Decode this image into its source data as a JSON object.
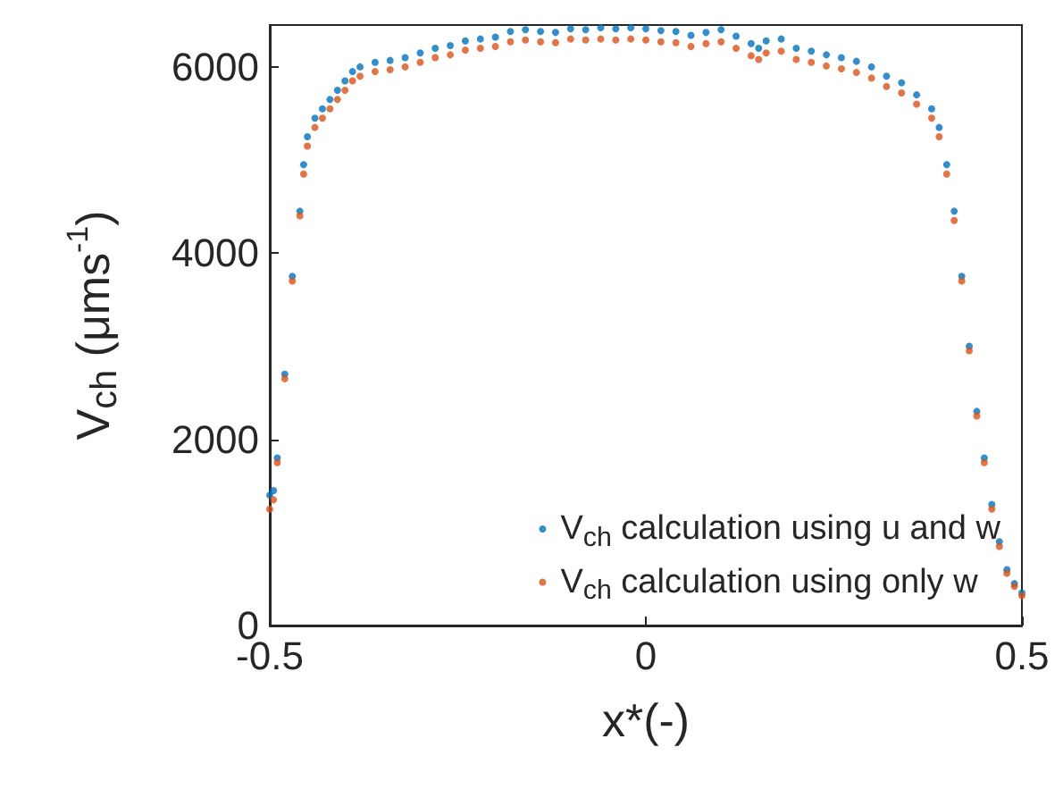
{
  "chart_data": {
    "type": "scatter",
    "xlabel": "x*(-)",
    "ylabel": "V$_{ch}$ (μms$^{-1}$)",
    "xlim": [
      -0.5,
      0.5
    ],
    "xticks": [
      -0.5,
      0,
      0.5
    ],
    "ylim": [
      0,
      6450
    ],
    "yticks": [
      0,
      2000,
      4000,
      6000
    ],
    "grid": false,
    "legend": "bottom right",
    "marker": "circle",
    "series": [
      {
        "name": "V$_{ch}$ calculation using u and w",
        "color": "#0072bd",
        "x": [
          -0.5,
          -0.495,
          -0.49,
          -0.48,
          -0.47,
          -0.46,
          -0.455,
          -0.45,
          -0.44,
          -0.43,
          -0.42,
          -0.41,
          -0.4,
          -0.39,
          -0.38,
          -0.36,
          -0.34,
          -0.32,
          -0.3,
          -0.28,
          -0.26,
          -0.24,
          -0.22,
          -0.2,
          -0.18,
          -0.16,
          -0.14,
          -0.12,
          -0.1,
          -0.08,
          -0.06,
          -0.04,
          -0.02,
          0,
          0.02,
          0.04,
          0.06,
          0.08,
          0.1,
          0.12,
          0.14,
          0.15,
          0.16,
          0.18,
          0.2,
          0.22,
          0.24,
          0.26,
          0.28,
          0.3,
          0.32,
          0.34,
          0.36,
          0.38,
          0.39,
          0.4,
          0.41,
          0.42,
          0.43,
          0.44,
          0.45,
          0.46,
          0.47,
          0.48,
          0.49,
          0.5
        ],
        "values": [
          1400,
          1450,
          1800,
          2700,
          3750,
          4450,
          4950,
          5250,
          5450,
          5550,
          5650,
          5750,
          5850,
          5950,
          6000,
          6050,
          6070,
          6100,
          6150,
          6200,
          6230,
          6280,
          6300,
          6320,
          6380,
          6400,
          6380,
          6370,
          6410,
          6400,
          6420,
          6410,
          6420,
          6410,
          6390,
          6380,
          6340,
          6370,
          6400,
          6330,
          6250,
          6200,
          6280,
          6300,
          6200,
          6170,
          6130,
          6100,
          6060,
          6000,
          5900,
          5830,
          5700,
          5550,
          5350,
          4950,
          4450,
          3750,
          3000,
          2300,
          1800,
          1300,
          900,
          600,
          450,
          350
        ]
      },
      {
        "name": "V$_{ch}$ calculation using only w",
        "color": "#d95319",
        "x": [
          -0.5,
          -0.495,
          -0.49,
          -0.48,
          -0.47,
          -0.46,
          -0.455,
          -0.45,
          -0.44,
          -0.43,
          -0.42,
          -0.41,
          -0.4,
          -0.39,
          -0.38,
          -0.36,
          -0.34,
          -0.32,
          -0.3,
          -0.28,
          -0.26,
          -0.24,
          -0.22,
          -0.2,
          -0.18,
          -0.16,
          -0.14,
          -0.12,
          -0.1,
          -0.08,
          -0.06,
          -0.04,
          -0.02,
          0,
          0.02,
          0.04,
          0.06,
          0.08,
          0.1,
          0.12,
          0.14,
          0.15,
          0.16,
          0.18,
          0.2,
          0.22,
          0.24,
          0.26,
          0.28,
          0.3,
          0.32,
          0.34,
          0.36,
          0.38,
          0.39,
          0.4,
          0.41,
          0.42,
          0.43,
          0.44,
          0.45,
          0.46,
          0.47,
          0.48,
          0.49,
          0.5
        ],
        "values": [
          1250,
          1350,
          1750,
          2650,
          3700,
          4400,
          4850,
          5150,
          5350,
          5450,
          5550,
          5650,
          5750,
          5850,
          5900,
          5950,
          5970,
          6000,
          6050,
          6100,
          6130,
          6180,
          6200,
          6220,
          6270,
          6290,
          6270,
          6260,
          6300,
          6290,
          6300,
          6290,
          6300,
          6290,
          6270,
          6260,
          6220,
          6250,
          6270,
          6200,
          6120,
          6080,
          6150,
          6170,
          6080,
          6050,
          6010,
          5980,
          5940,
          5880,
          5790,
          5720,
          5600,
          5450,
          5250,
          4850,
          4350,
          3700,
          2950,
          2250,
          1750,
          1250,
          850,
          560,
          420,
          320
        ]
      }
    ]
  }
}
